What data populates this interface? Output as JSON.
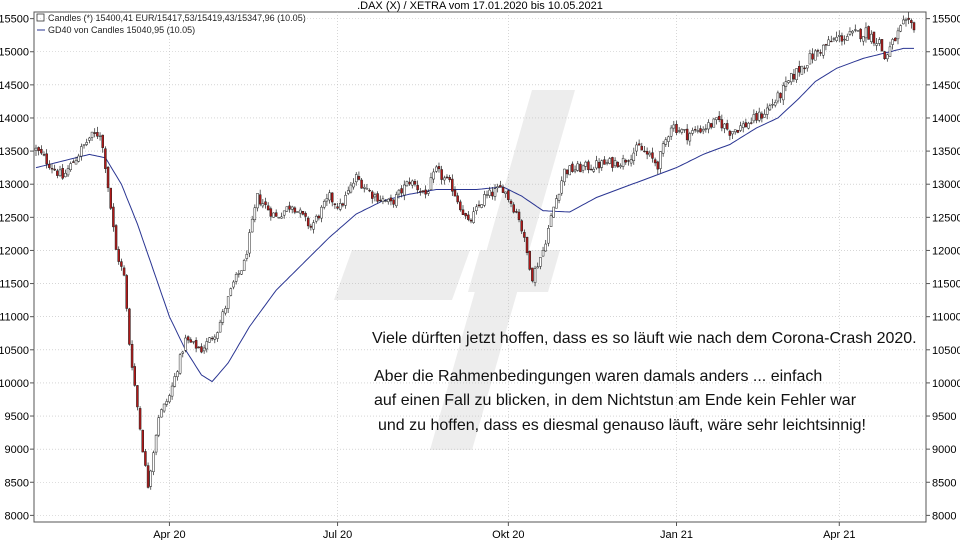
{
  "chart_data": {
    "type": "candlestick",
    "title": ".DAX (X) / XETRA vom 17.01.2020 bis 10.05.2021",
    "legend": [
      {
        "name": "candles",
        "label": "Candles (*) 15400,41 EUR/15417,53/15419,43/15347,96 (10.05)"
      },
      {
        "name": "ma",
        "label": "GD40 von Candles 15040,95 (10.05)"
      }
    ],
    "ylim": [
      7900,
      15600
    ],
    "y_ticks": [
      8000,
      8500,
      9000,
      9500,
      10000,
      10500,
      11000,
      11500,
      12000,
      12500,
      13000,
      13500,
      14000,
      14500,
      15000,
      15500
    ],
    "x_ticks": [
      "Apr 20",
      "Jul 20",
      "Okt 20",
      "Jan 21",
      "Apr 21"
    ],
    "x_tick_index": [
      50,
      113,
      177,
      240,
      301
    ],
    "n_days": 330,
    "close_keypoints": [
      [
        0,
        13520
      ],
      [
        10,
        13100
      ],
      [
        20,
        13700
      ],
      [
        24,
        13780
      ],
      [
        26,
        13300
      ],
      [
        30,
        12000
      ],
      [
        33,
        11600
      ],
      [
        35,
        10600
      ],
      [
        40,
        9000
      ],
      [
        42,
        8450
      ],
      [
        46,
        9500
      ],
      [
        50,
        9800
      ],
      [
        56,
        10650
      ],
      [
        62,
        10500
      ],
      [
        68,
        10800
      ],
      [
        74,
        11500
      ],
      [
        78,
        11800
      ],
      [
        83,
        12800
      ],
      [
        90,
        12500
      ],
      [
        96,
        12700
      ],
      [
        103,
        12350
      ],
      [
        110,
        12800
      ],
      [
        114,
        12650
      ],
      [
        120,
        13100
      ],
      [
        126,
        12850
      ],
      [
        133,
        12700
      ],
      [
        140,
        13050
      ],
      [
        146,
        12850
      ],
      [
        150,
        13200
      ],
      [
        156,
        12950
      ],
      [
        162,
        12400
      ],
      [
        168,
        12800
      ],
      [
        175,
        12950
      ],
      [
        181,
        12500
      ],
      [
        186,
        11600
      ],
      [
        190,
        12000
      ],
      [
        194,
        12650
      ],
      [
        198,
        13200
      ],
      [
        205,
        13250
      ],
      [
        212,
        13300
      ],
      [
        220,
        13350
      ],
      [
        226,
        13550
      ],
      [
        233,
        13300
      ],
      [
        238,
        13900
      ],
      [
        244,
        13750
      ],
      [
        250,
        13850
      ],
      [
        256,
        13950
      ],
      [
        260,
        13800
      ],
      [
        266,
        13900
      ],
      [
        272,
        14050
      ],
      [
        278,
        14300
      ],
      [
        284,
        14650
      ],
      [
        290,
        14900
      ],
      [
        296,
        15100
      ],
      [
        300,
        15200
      ],
      [
        306,
        15250
      ],
      [
        311,
        15300
      ],
      [
        316,
        15150
      ],
      [
        318,
        14900
      ],
      [
        322,
        15200
      ],
      [
        325,
        15400
      ]
    ],
    "ma_keypoints": [
      [
        0,
        13250
      ],
      [
        20,
        13450
      ],
      [
        26,
        13400
      ],
      [
        32,
        13000
      ],
      [
        38,
        12400
      ],
      [
        44,
        11700
      ],
      [
        50,
        11000
      ],
      [
        56,
        10500
      ],
      [
        62,
        10120
      ],
      [
        66,
        10020
      ],
      [
        72,
        10300
      ],
      [
        80,
        10850
      ],
      [
        90,
        11400
      ],
      [
        100,
        11800
      ],
      [
        110,
        12200
      ],
      [
        120,
        12550
      ],
      [
        130,
        12750
      ],
      [
        140,
        12850
      ],
      [
        150,
        12920
      ],
      [
        165,
        12920
      ],
      [
        175,
        12960
      ],
      [
        182,
        12820
      ],
      [
        190,
        12600
      ],
      [
        200,
        12580
      ],
      [
        210,
        12800
      ],
      [
        220,
        12950
      ],
      [
        230,
        13100
      ],
      [
        240,
        13250
      ],
      [
        250,
        13450
      ],
      [
        260,
        13600
      ],
      [
        270,
        13850
      ],
      [
        278,
        14000
      ],
      [
        286,
        14300
      ],
      [
        292,
        14550
      ],
      [
        300,
        14750
      ],
      [
        310,
        14900
      ],
      [
        318,
        14980
      ],
      [
        325,
        15050
      ]
    ]
  },
  "annotation": {
    "line1": "Viele dürften jetzt hoffen, dass es so läuft wie nach dem Corona-Crash 2020.",
    "line2": "Aber die Rahmenbedingungen waren damals anders ... einfach",
    "line3": "auf einen Fall zu blicken, in dem Nichtstun am Ende kein Fehler war",
    "line4": "und zu hoffen, dass es diesmal genauso läuft, wäre sehr leichtsinnig!"
  },
  "colors": {
    "up_candle": "#ffffff",
    "down_candle": "#b01818",
    "wick": "#222222",
    "ma_line": "#2a3592",
    "grid": "#bdbdbd",
    "watermark": "#ececec"
  }
}
